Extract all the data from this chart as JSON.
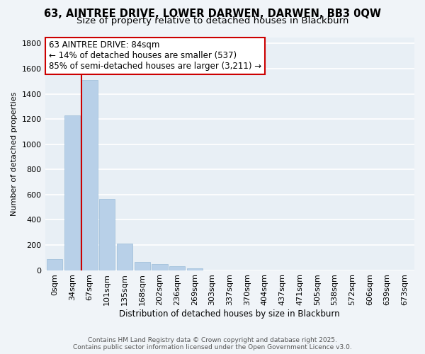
{
  "title": "63, AINTREE DRIVE, LOWER DARWEN, DARWEN, BB3 0QW",
  "subtitle": "Size of property relative to detached houses in Blackburn",
  "xlabel": "Distribution of detached houses by size in Blackburn",
  "ylabel": "Number of detached properties",
  "bar_labels": [
    "0sqm",
    "34sqm",
    "67sqm",
    "101sqm",
    "135sqm",
    "168sqm",
    "202sqm",
    "236sqm",
    "269sqm",
    "303sqm",
    "337sqm",
    "370sqm",
    "404sqm",
    "437sqm",
    "471sqm",
    "505sqm",
    "538sqm",
    "572sqm",
    "606sqm",
    "639sqm",
    "673sqm"
  ],
  "bar_values": [
    90,
    1230,
    1510,
    565,
    210,
    65,
    47,
    30,
    17,
    0,
    0,
    0,
    0,
    0,
    0,
    0,
    0,
    0,
    0,
    0,
    0
  ],
  "bar_color": "#b8d0e8",
  "bar_edge_color": "#9bbcd8",
  "vline_color": "#cc0000",
  "annotation_title": "63 AINTREE DRIVE: 84sqm",
  "annotation_line1": "← 14% of detached houses are smaller (537)",
  "annotation_line2": "85% of semi-detached houses are larger (3,211) →",
  "annotation_box_color": "#ffffff",
  "annotation_box_edge": "#cc0000",
  "ylim": [
    0,
    1850
  ],
  "yticks": [
    0,
    200,
    400,
    600,
    800,
    1000,
    1200,
    1400,
    1600,
    1800
  ],
  "footer1": "Contains HM Land Registry data © Crown copyright and database right 2025.",
  "footer2": "Contains public sector information licensed under the Open Government Licence v3.0.",
  "background_color": "#f0f4f8",
  "plot_bg_color": "#e8eff5",
  "grid_color": "#ffffff",
  "title_fontsize": 10.5,
  "subtitle_fontsize": 9.5,
  "vline_x_index": 1.5
}
